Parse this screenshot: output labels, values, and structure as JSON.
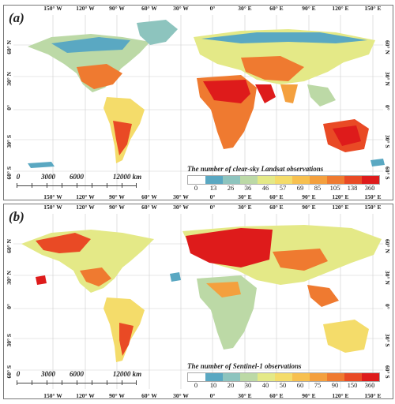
{
  "lon_labels": [
    "150° W",
    "120° W",
    "90° W",
    "60° W",
    "30° W",
    "0°",
    "30° E",
    "60° E",
    "90° E",
    "120° E",
    "150° E"
  ],
  "lat_labels": [
    "60° N",
    "30° N",
    "0°",
    "30° S",
    "60° S"
  ],
  "colors": {
    "ocean": "#ffffff",
    "grid": "#cfcfcf"
  },
  "panels": [
    {
      "tag": "(a)",
      "scale_labels": [
        "0",
        "3000",
        "6000",
        "12000 km"
      ],
      "legend": {
        "title": "The number of clear-sky Landsat observations",
        "classes": [
          "0",
          "13",
          "26",
          "36",
          "46",
          "57",
          "69",
          "85",
          "105",
          "138",
          "360"
        ],
        "colors": [
          "#ffffff",
          "#5aa8c2",
          "#8dc4be",
          "#bcd9a6",
          "#e4e987",
          "#f4dc6a",
          "#f7c04f",
          "#f4a03e",
          "#ef7a30",
          "#e94a25",
          "#de1b1b"
        ]
      }
    },
    {
      "tag": "(b)",
      "scale_labels": [
        "0",
        "3000",
        "6000",
        "12000 km"
      ],
      "legend": {
        "title": "The number of Sentinel-1 observations",
        "classes": [
          "0",
          "10",
          "20",
          "30",
          "40",
          "50",
          "60",
          "75",
          "90",
          "150",
          "360"
        ],
        "colors": [
          "#ffffff",
          "#5aa8c2",
          "#8dc4be",
          "#bcd9a6",
          "#e4e987",
          "#f4dc6a",
          "#f7c04f",
          "#f4a03e",
          "#ef7a30",
          "#e94a25",
          "#de1b1b"
        ]
      }
    }
  ]
}
